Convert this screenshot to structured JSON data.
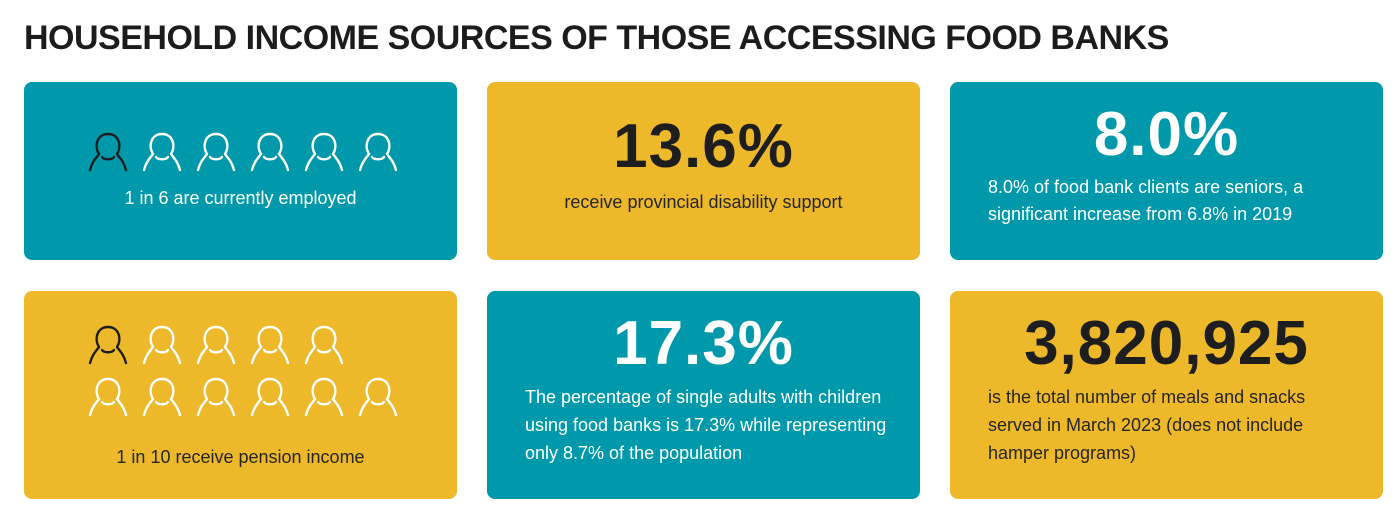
{
  "title": "HOUSEHOLD INCOME SOURCES OF THOSE ACCESSING FOOD BANKS",
  "colors": {
    "teal": "#0098ab",
    "gold": "#edb829",
    "dark": "#1e1e1e",
    "white": "#ffffff"
  },
  "cards": {
    "employed": {
      "icon": "person-outline-icon",
      "highlighted_count": 1,
      "total_count": 6,
      "caption": "1 in 6 are currently employed"
    },
    "disability": {
      "stat": "13.6%",
      "description": "receive provincial disability support"
    },
    "seniors": {
      "stat": "8.0%",
      "description": "8.0% of food bank clients are seniors, a significant increase from 6.8% in 2019"
    },
    "pension": {
      "icon": "person-outline-icon",
      "highlighted_count": 1,
      "total_count": 10,
      "caption": "1 in 10 receive pension income"
    },
    "single_adults": {
      "stat": "17.3%",
      "description": "The percentage of single adults with children using food banks is 17.3% while representing only 8.7% of the population"
    },
    "meals": {
      "stat": "3,820,925",
      "description": "is the total number of meals and snacks served in March 2023 (does not include hamper programs)"
    }
  }
}
